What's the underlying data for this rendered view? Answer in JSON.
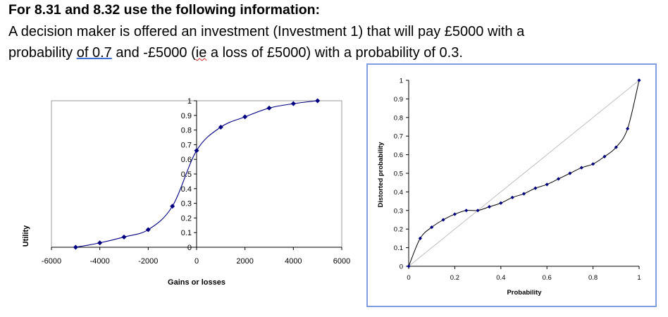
{
  "document": {
    "heading": "For 8.31 and 8.32 use the following information:",
    "line1": "A decision maker is offered an investment (Investment 1) that will pay £5000 with a",
    "line2_pre": "probability ",
    "line2_of": "of  0.7",
    "line2_mid": " and -£5000 (",
    "line2_ie": "ie",
    "line2_post": " a loss of £5000) with a probability of 0.3."
  },
  "chart_data": [
    {
      "type": "line",
      "title": "",
      "xlabel": "Gains or losses",
      "ylabel": "Utility",
      "xlim": [
        -6000,
        6000
      ],
      "ylim": [
        0,
        1
      ],
      "x_ticks": [
        "-6000",
        "-4000",
        "-2000",
        "0",
        "2000",
        "4000",
        "6000"
      ],
      "y_ticks": [
        "0",
        "0.1",
        "0.2",
        "0.3",
        "0.4",
        "0.5",
        "0.6",
        "0.7",
        "0.8",
        "0.9",
        "1"
      ],
      "series": [
        {
          "x": [
            -5000,
            -4000,
            -3000,
            -2000,
            -1000,
            0,
            1000,
            2000,
            3000,
            4000,
            5000
          ],
          "y": [
            0,
            0.03,
            0.07,
            0.12,
            0.28,
            0.66,
            0.82,
            0.89,
            0.95,
            0.98,
            1.0
          ]
        }
      ],
      "color": "#000080",
      "grid": false,
      "legend": "none"
    },
    {
      "type": "line",
      "title": "",
      "xlabel": "Probability",
      "ylabel": "Distorted probability",
      "xlim": [
        0,
        1
      ],
      "ylim": [
        0,
        1
      ],
      "x_ticks": [
        "0",
        "0.2",
        "0.4",
        "0.6",
        "0.8",
        "1"
      ],
      "y_ticks": [
        "0",
        "0.1",
        "0.2",
        "0.3",
        "0.4",
        "0.5",
        "0.6",
        "0.7",
        "0.8",
        "0.9",
        "1"
      ],
      "series": [
        {
          "x": [
            0,
            0.05,
            0.1,
            0.15,
            0.2,
            0.25,
            0.3,
            0.35,
            0.4,
            0.45,
            0.5,
            0.55,
            0.6,
            0.65,
            0.7,
            0.75,
            0.8,
            0.85,
            0.9,
            0.95,
            1.0
          ],
          "y": [
            0,
            0.15,
            0.21,
            0.25,
            0.28,
            0.3,
            0.3,
            0.32,
            0.34,
            0.37,
            0.39,
            0.42,
            0.44,
            0.47,
            0.5,
            0.53,
            0.55,
            0.59,
            0.64,
            0.74,
            1.0
          ]
        }
      ],
      "reference_line": [
        [
          0,
          0
        ],
        [
          1,
          1
        ]
      ],
      "color": "#000080",
      "grid": false,
      "legend": "none"
    }
  ]
}
